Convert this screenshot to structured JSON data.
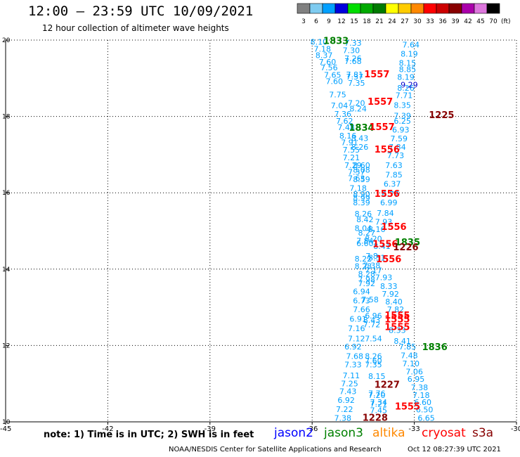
{
  "header": {
    "title": "12:00 – 23:59 UTC 10/09/2021",
    "subtitle": "12 hour collection of altimeter wave heights"
  },
  "legend": {
    "unit": "(ft)",
    "items": [
      {
        "label": "3",
        "color": "#808080"
      },
      {
        "label": "6",
        "color": "#7ecbf0"
      },
      {
        "label": "9",
        "color": "#00a0ff"
      },
      {
        "label": "12",
        "color": "#0000dd"
      },
      {
        "label": "15",
        "color": "#00dd00"
      },
      {
        "label": "18",
        "color": "#00aa00"
      },
      {
        "label": "21",
        "color": "#007a00"
      },
      {
        "label": "24",
        "color": "#ffff00"
      },
      {
        "label": "27",
        "color": "#ffcc00"
      },
      {
        "label": "30",
        "color": "#ff8800"
      },
      {
        "label": "33",
        "color": "#ff0000"
      },
      {
        "label": "36",
        "color": "#cc0000"
      },
      {
        "label": "39",
        "color": "#880000"
      },
      {
        "label": "42",
        "color": "#aa00aa"
      },
      {
        "label": "45",
        "color": "#dd77dd"
      },
      {
        "label": "70",
        "color": "#000000"
      }
    ]
  },
  "footer": {
    "note": "note: 1) Time is in UTC; 2) SWH is in feet",
    "satellites": [
      {
        "name": "jason2",
        "color": "#0000ff"
      },
      {
        "name": "jason3",
        "color": "#008000"
      },
      {
        "name": "altika",
        "color": "#ff8800"
      },
      {
        "name": "cryosat",
        "color": "#ff0000"
      },
      {
        "name": "s3a",
        "color": "#880000"
      }
    ],
    "credit": "NOAA/NESDIS Center for Satellite Applications and Research",
    "timestamp": "Oct 12 08:27:39 UTC 2021"
  },
  "chart_data": {
    "type": "scatter",
    "xlim": [
      -45,
      -30
    ],
    "ylim": [
      10,
      20
    ],
    "x_ticks": [
      -45,
      -42,
      -39,
      -36,
      -33,
      -30
    ],
    "y_ticks": [
      10,
      12,
      14,
      16,
      18,
      20
    ],
    "grid": true,
    "colors": {
      "swh": "#00a0ff",
      "jason3": "#008000",
      "cryosat": "#ff0000",
      "s3a": "#880000",
      "jason2": "#0000cc"
    },
    "swh_points": [
      {
        "x": -35.8,
        "y": 19.95,
        "t": "8.10"
      },
      {
        "x": -34.8,
        "y": 19.93,
        "t": "7.33"
      },
      {
        "x": -33.1,
        "y": 19.88,
        "t": "7.64"
      },
      {
        "x": -35.7,
        "y": 19.77,
        "t": "7.18"
      },
      {
        "x": -34.85,
        "y": 19.73,
        "t": "7.30"
      },
      {
        "x": -35.65,
        "y": 19.6,
        "t": "8.37"
      },
      {
        "x": -33.15,
        "y": 19.64,
        "t": "8.19"
      },
      {
        "x": -34.8,
        "y": 19.52,
        "t": "7.26"
      },
      {
        "x": -34.8,
        "y": 19.45,
        "t": "7.68"
      },
      {
        "x": -35.55,
        "y": 19.43,
        "t": "7.60"
      },
      {
        "x": -33.2,
        "y": 19.4,
        "t": "8.15"
      },
      {
        "x": -35.5,
        "y": 19.28,
        "t": "7.56"
      },
      {
        "x": -33.2,
        "y": 19.24,
        "t": "8.85"
      },
      {
        "x": -34.75,
        "y": 19.1,
        "t": "7.81"
      },
      {
        "x": -35.4,
        "y": 19.09,
        "t": "7.65"
      },
      {
        "x": -34.75,
        "y": 19.04,
        "t": "7.37"
      },
      {
        "x": -33.25,
        "y": 19.03,
        "t": "8.19"
      },
      {
        "x": -35.35,
        "y": 18.92,
        "t": "7.60"
      },
      {
        "x": -34.7,
        "y": 18.88,
        "t": "7.35"
      },
      {
        "x": -33.25,
        "y": 18.75,
        "t": "8.26"
      },
      {
        "x": -35.25,
        "y": 18.57,
        "t": "7.75"
      },
      {
        "x": -33.3,
        "y": 18.55,
        "t": "7.71"
      },
      {
        "x": -34.7,
        "y": 18.35,
        "t": "7.20"
      },
      {
        "x": -35.2,
        "y": 18.29,
        "t": "7.04"
      },
      {
        "x": -33.35,
        "y": 18.3,
        "t": "8.35"
      },
      {
        "x": -34.65,
        "y": 18.2,
        "t": "8.24"
      },
      {
        "x": -35.1,
        "y": 18.07,
        "t": "7.36"
      },
      {
        "x": -33.35,
        "y": 18.02,
        "t": "7.39"
      },
      {
        "x": -35.05,
        "y": 17.88,
        "t": "7.62"
      },
      {
        "x": -33.35,
        "y": 17.88,
        "t": "6.25"
      },
      {
        "x": -35.0,
        "y": 17.72,
        "t": "7.48"
      },
      {
        "x": -33.4,
        "y": 17.65,
        "t": "6.93"
      },
      {
        "x": -34.95,
        "y": 17.5,
        "t": "8.16"
      },
      {
        "x": -34.6,
        "y": 17.43,
        "t": "8.43"
      },
      {
        "x": -33.45,
        "y": 17.42,
        "t": "7.59"
      },
      {
        "x": -34.9,
        "y": 17.32,
        "t": "7.91"
      },
      {
        "x": -34.6,
        "y": 17.2,
        "t": "8.26"
      },
      {
        "x": -33.5,
        "y": 17.2,
        "t": "7.84"
      },
      {
        "x": -34.85,
        "y": 17.13,
        "t": "7.55"
      },
      {
        "x": -33.55,
        "y": 16.98,
        "t": "7.73"
      },
      {
        "x": -34.85,
        "y": 16.92,
        "t": "7.21"
      },
      {
        "x": -34.8,
        "y": 16.72,
        "t": "7.29"
      },
      {
        "x": -34.55,
        "y": 16.72,
        "t": "8.60"
      },
      {
        "x": -33.6,
        "y": 16.72,
        "t": "7.63"
      },
      {
        "x": -34.7,
        "y": 16.55,
        "t": "7.37"
      },
      {
        "x": -34.55,
        "y": 16.6,
        "t": "8.08"
      },
      {
        "x": -33.6,
        "y": 16.47,
        "t": "7.85"
      },
      {
        "x": -34.7,
        "y": 16.38,
        "t": "7.63"
      },
      {
        "x": -34.55,
        "y": 16.35,
        "t": "8.59"
      },
      {
        "x": -33.65,
        "y": 16.23,
        "t": "6.37"
      },
      {
        "x": -34.65,
        "y": 16.12,
        "t": "7.18"
      },
      {
        "x": -34.55,
        "y": 15.97,
        "t": "8.90"
      },
      {
        "x": -33.7,
        "y": 15.97,
        "t": "6.77"
      },
      {
        "x": -34.55,
        "y": 15.87,
        "t": "8.99"
      },
      {
        "x": -33.75,
        "y": 15.75,
        "t": "6.99"
      },
      {
        "x": -34.55,
        "y": 15.75,
        "t": "8.39"
      },
      {
        "x": -34.5,
        "y": 15.45,
        "t": "8.26"
      },
      {
        "x": -33.85,
        "y": 15.47,
        "t": "7.84"
      },
      {
        "x": -34.45,
        "y": 15.3,
        "t": "8.42"
      },
      {
        "x": -33.9,
        "y": 15.24,
        "t": "7.93"
      },
      {
        "x": -34.5,
        "y": 15.07,
        "t": "8.04"
      },
      {
        "x": -34.1,
        "y": 15.05,
        "t": "8.16"
      },
      {
        "x": -34.4,
        "y": 14.95,
        "t": "8.27"
      },
      {
        "x": -34.45,
        "y": 14.74,
        "t": "7.84"
      },
      {
        "x": -34.2,
        "y": 14.8,
        "t": "8.20"
      },
      {
        "x": -34.45,
        "y": 14.68,
        "t": "6.60"
      },
      {
        "x": -33.95,
        "y": 14.6,
        "t": "8.41"
      },
      {
        "x": -34.25,
        "y": 14.35,
        "t": "7.8"
      },
      {
        "x": -34.5,
        "y": 14.27,
        "t": "8.22"
      },
      {
        "x": -34.1,
        "y": 14.3,
        "t": "8.31"
      },
      {
        "x": -34.5,
        "y": 14.08,
        "t": "8.28"
      },
      {
        "x": -34.25,
        "y": 14.1,
        "t": "7.38"
      },
      {
        "x": -34.2,
        "y": 13.97,
        "t": "7.17"
      },
      {
        "x": -34.4,
        "y": 13.88,
        "t": "8.28"
      },
      {
        "x": -34.4,
        "y": 13.73,
        "t": "7.98"
      },
      {
        "x": -33.9,
        "y": 13.78,
        "t": "7.93"
      },
      {
        "x": -34.4,
        "y": 13.63,
        "t": "7.92"
      },
      {
        "x": -33.75,
        "y": 13.55,
        "t": "8.33"
      },
      {
        "x": -34.55,
        "y": 13.42,
        "t": "6.94"
      },
      {
        "x": -33.7,
        "y": 13.35,
        "t": "7.92"
      },
      {
        "x": -34.55,
        "y": 13.18,
        "t": "6.73"
      },
      {
        "x": -34.3,
        "y": 13.2,
        "t": "7.58"
      },
      {
        "x": -33.6,
        "y": 13.15,
        "t": "8.40"
      },
      {
        "x": -34.55,
        "y": 12.95,
        "t": "7.66"
      },
      {
        "x": -33.55,
        "y": 12.95,
        "t": "7.82"
      },
      {
        "x": -34.2,
        "y": 12.78,
        "t": "6.96"
      },
      {
        "x": -34.65,
        "y": 12.7,
        "t": "6.91"
      },
      {
        "x": -34.25,
        "y": 12.67,
        "t": "8.43"
      },
      {
        "x": -34.25,
        "y": 12.55,
        "t": "7.72"
      },
      {
        "x": -34.7,
        "y": 12.45,
        "t": "7.16"
      },
      {
        "x": -33.5,
        "y": 12.4,
        "t": "8.33"
      },
      {
        "x": -34.7,
        "y": 12.18,
        "t": "7.12"
      },
      {
        "x": -34.2,
        "y": 12.18,
        "t": "7.54"
      },
      {
        "x": -33.35,
        "y": 12.12,
        "t": "8.41"
      },
      {
        "x": -34.8,
        "y": 11.97,
        "t": "6.92"
      },
      {
        "x": -33.2,
        "y": 11.97,
        "t": "7.85"
      },
      {
        "x": -34.75,
        "y": 11.72,
        "t": "7.68"
      },
      {
        "x": -34.2,
        "y": 11.72,
        "t": "8.26"
      },
      {
        "x": -33.15,
        "y": 11.74,
        "t": "7.48"
      },
      {
        "x": -34.2,
        "y": 11.6,
        "t": "7.60"
      },
      {
        "x": -34.8,
        "y": 11.5,
        "t": "7.33"
      },
      {
        "x": -34.2,
        "y": 11.5,
        "t": "7.35"
      },
      {
        "x": -33.1,
        "y": 11.53,
        "t": "7.10"
      },
      {
        "x": -34.85,
        "y": 11.22,
        "t": "7.11"
      },
      {
        "x": -34.1,
        "y": 11.2,
        "t": "8.15"
      },
      {
        "x": -33.0,
        "y": 11.32,
        "t": "7.06"
      },
      {
        "x": -34.9,
        "y": 11.0,
        "t": "7.25"
      },
      {
        "x": -32.95,
        "y": 11.12,
        "t": "6.95"
      },
      {
        "x": -34.95,
        "y": 10.8,
        "t": "7.43"
      },
      {
        "x": -32.85,
        "y": 10.9,
        "t": "7.38"
      },
      {
        "x": -34.1,
        "y": 10.75,
        "t": "7.76"
      },
      {
        "x": -34.1,
        "y": 10.7,
        "t": "7.20"
      },
      {
        "x": -32.8,
        "y": 10.7,
        "t": "7.18"
      },
      {
        "x": -35.0,
        "y": 10.57,
        "t": "6.92"
      },
      {
        "x": -34.05,
        "y": 10.52,
        "t": "7.34"
      },
      {
        "x": -32.75,
        "y": 10.52,
        "t": "6.60"
      },
      {
        "x": -34.05,
        "y": 10.47,
        "t": "7.21"
      },
      {
        "x": -35.05,
        "y": 10.33,
        "t": "7.22"
      },
      {
        "x": -34.05,
        "y": 10.3,
        "t": "7.45"
      },
      {
        "x": -32.7,
        "y": 10.32,
        "t": "6.50"
      },
      {
        "x": -35.1,
        "y": 10.1,
        "t": "7.38"
      },
      {
        "x": -32.65,
        "y": 10.1,
        "t": "6.65"
      }
    ],
    "pass_labels": [
      {
        "x": -35.3,
        "y": 19.97,
        "t": "1833",
        "sat": "jason3"
      },
      {
        "x": -34.1,
        "y": 19.1,
        "t": "1557",
        "sat": "cryosat"
      },
      {
        "x": -33.15,
        "y": 18.83,
        "t": "9.29",
        "sat": "jason2"
      },
      {
        "x": -34.0,
        "y": 18.38,
        "t": "1557",
        "sat": "cryosat"
      },
      {
        "x": -32.2,
        "y": 18.03,
        "t": "1225",
        "sat": "s3a"
      },
      {
        "x": -34.55,
        "y": 17.7,
        "t": "1834",
        "sat": "jason3"
      },
      {
        "x": -33.95,
        "y": 17.72,
        "t": "1557",
        "sat": "cryosat"
      },
      {
        "x": -33.8,
        "y": 17.13,
        "t": "1556",
        "sat": "cryosat"
      },
      {
        "x": -33.8,
        "y": 15.97,
        "t": "1556",
        "sat": "cryosat"
      },
      {
        "x": -33.6,
        "y": 15.1,
        "t": "1556",
        "sat": "cryosat"
      },
      {
        "x": -33.85,
        "y": 14.65,
        "t": "1556",
        "sat": "cryosat"
      },
      {
        "x": -33.2,
        "y": 14.7,
        "t": "1835",
        "sat": "jason3"
      },
      {
        "x": -33.25,
        "y": 14.57,
        "t": "1226",
        "sat": "s3a"
      },
      {
        "x": -33.75,
        "y": 14.25,
        "t": "1556",
        "sat": "cryosat"
      },
      {
        "x": -33.5,
        "y": 12.78,
        "t": "1555",
        "sat": "cryosat"
      },
      {
        "x": -33.5,
        "y": 12.68,
        "t": "1555",
        "sat": "cryosat"
      },
      {
        "x": -33.5,
        "y": 12.48,
        "t": "1555",
        "sat": "cryosat"
      },
      {
        "x": -32.4,
        "y": 11.95,
        "t": "1836",
        "sat": "jason3"
      },
      {
        "x": -33.8,
        "y": 10.97,
        "t": "1227",
        "sat": "s3a"
      },
      {
        "x": -33.2,
        "y": 10.4,
        "t": "1555",
        "sat": "cryosat"
      },
      {
        "x": -34.15,
        "y": 10.1,
        "t": "1228",
        "sat": "s3a"
      }
    ]
  }
}
